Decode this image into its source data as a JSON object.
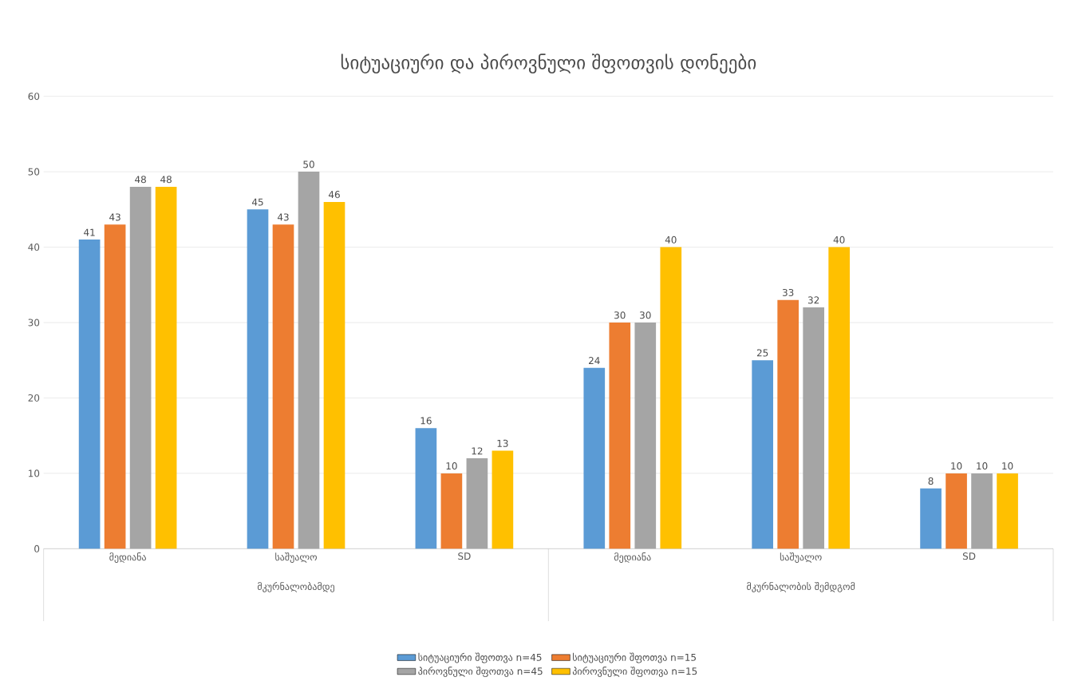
{
  "chart_data": {
    "type": "bar",
    "title": "სიტუაციური და პიროვნული შფოთვის დონეები",
    "categories": [
      "მედიანა",
      "საშუალო",
      "SD",
      "მედიანა",
      "საშუალო",
      "SD"
    ],
    "annotations": [
      "მკურნალობამდე",
      "მკურნალობის შემდგომ"
    ],
    "series": [
      {
        "name": "სიტუაციური შფოთვა n=45",
        "color": "#5b9bd5",
        "values": [
          41,
          45,
          16,
          24,
          25,
          8
        ]
      },
      {
        "name": "სიტუაციური შფოთვა n=15",
        "color": "#ed7d31",
        "values": [
          43,
          43,
          10,
          30,
          33,
          10
        ]
      },
      {
        "name": "პიროვნული შფოთვა n=45",
        "color": "#a5a5a5",
        "values": [
          48,
          50,
          12,
          30,
          32,
          10
        ]
      },
      {
        "name": "პიროვნული შფოთვა n=15",
        "color": "#ffc000",
        "values": [
          48,
          46,
          13,
          40,
          40,
          10
        ]
      }
    ],
    "ylim": [
      0,
      60
    ],
    "yticks": [
      0,
      10,
      20,
      30,
      40,
      50,
      60
    ],
    "grid": "y",
    "legend": "bottom",
    "data_labels": true
  }
}
